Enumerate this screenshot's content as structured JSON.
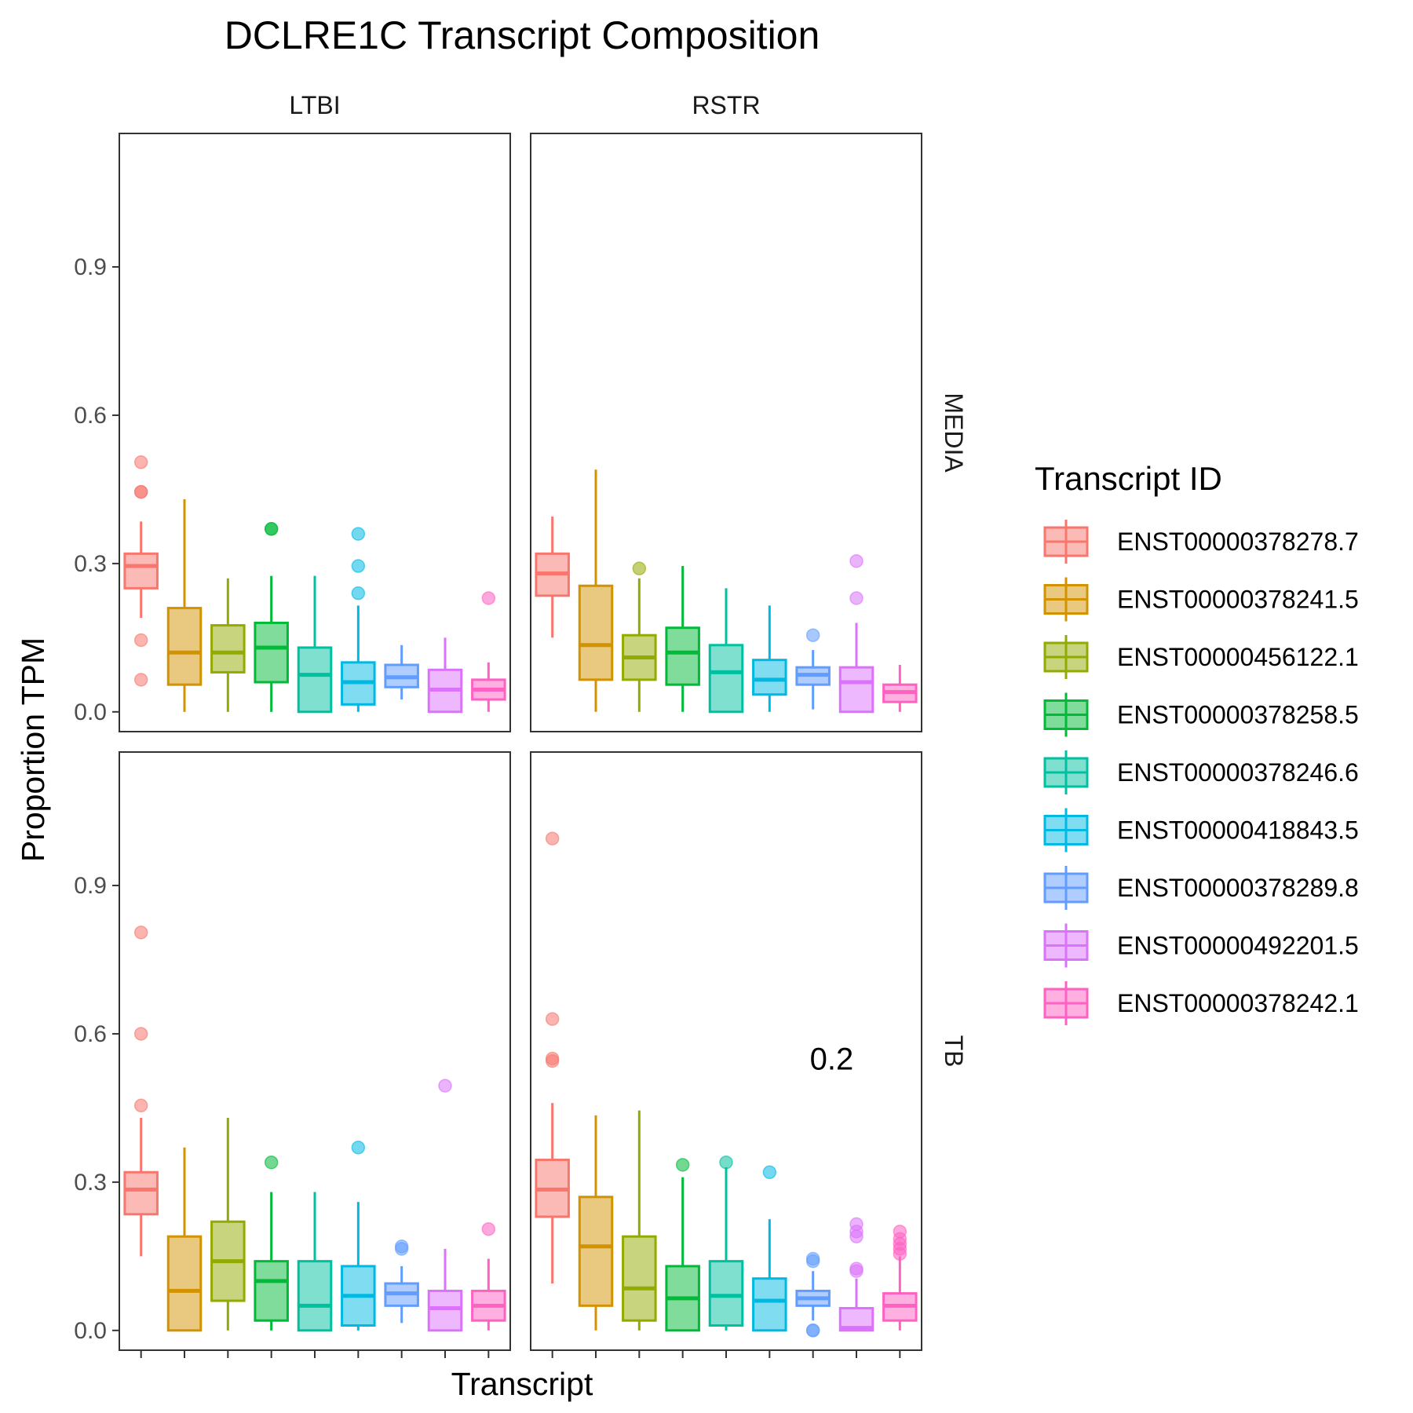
{
  "chart_data": {
    "type": "box",
    "title": "DCLRE1C Transcript Composition",
    "xlabel": "Transcript",
    "ylabel": "Proportion TPM",
    "ylim": [
      -0.04,
      1.17
    ],
    "y_ticks": [
      "0.0",
      "0.3",
      "0.6",
      "0.9"
    ],
    "y_tick_values": [
      0,
      0.3,
      0.6,
      0.9
    ],
    "column_facets": [
      "LTBI",
      "RSTR"
    ],
    "row_facets": [
      "MEDIA",
      "TB"
    ],
    "legend": {
      "title": "Transcript ID",
      "placement": "right",
      "entries": [
        {
          "label": "ENST00000378278.7",
          "color": "#F8766D"
        },
        {
          "label": "ENST00000378241.5",
          "color": "#D39200"
        },
        {
          "label": "ENST00000456122.1",
          "color": "#93AA00"
        },
        {
          "label": "ENST00000378258.5",
          "color": "#00BA38"
        },
        {
          "label": "ENST00000378246.6",
          "color": "#00C19F"
        },
        {
          "label": "ENST00000418843.5",
          "color": "#00B9E3"
        },
        {
          "label": "ENST00000378289.8",
          "color": "#619CFF"
        },
        {
          "label": "ENST00000492201.5",
          "color": "#DB72FB"
        },
        {
          "label": "ENST00000378242.1",
          "color": "#FF61C3"
        }
      ]
    },
    "panels": [
      {
        "column": "LTBI",
        "row": "MEDIA",
        "boxes": [
          {
            "q1": 0.25,
            "median": 0.295,
            "q3": 0.32,
            "lower": 0.19,
            "upper": 0.385,
            "outliers": [
              0.505,
              0.445,
              0.445,
              0.145,
              0.065
            ]
          },
          {
            "q1": 0.055,
            "median": 0.12,
            "q3": 0.21,
            "lower": 0.0,
            "upper": 0.43,
            "outliers": []
          },
          {
            "q1": 0.08,
            "median": 0.12,
            "q3": 0.175,
            "lower": 0.0,
            "upper": 0.27,
            "outliers": []
          },
          {
            "q1": 0.06,
            "median": 0.13,
            "q3": 0.18,
            "lower": 0.0,
            "upper": 0.275,
            "outliers": [
              0.37,
              0.37
            ]
          },
          {
            "q1": 0.0,
            "median": 0.075,
            "q3": 0.13,
            "lower": 0.0,
            "upper": 0.275,
            "outliers": []
          },
          {
            "q1": 0.015,
            "median": 0.06,
            "q3": 0.1,
            "lower": 0.0,
            "upper": 0.215,
            "outliers": [
              0.36,
              0.295,
              0.24
            ]
          },
          {
            "q1": 0.05,
            "median": 0.07,
            "q3": 0.095,
            "lower": 0.025,
            "upper": 0.135,
            "outliers": []
          },
          {
            "q1": 0.0,
            "median": 0.045,
            "q3": 0.085,
            "lower": 0.0,
            "upper": 0.15,
            "outliers": []
          },
          {
            "q1": 0.025,
            "median": 0.045,
            "q3": 0.065,
            "lower": 0.0,
            "upper": 0.1,
            "outliers": [
              0.23
            ]
          }
        ]
      },
      {
        "column": "RSTR",
        "row": "MEDIA",
        "boxes": [
          {
            "q1": 0.235,
            "median": 0.28,
            "q3": 0.32,
            "lower": 0.15,
            "upper": 0.395,
            "outliers": []
          },
          {
            "q1": 0.065,
            "median": 0.135,
            "q3": 0.255,
            "lower": 0.0,
            "upper": 0.49,
            "outliers": []
          },
          {
            "q1": 0.065,
            "median": 0.11,
            "q3": 0.155,
            "lower": 0.0,
            "upper": 0.27,
            "outliers": [
              0.29
            ]
          },
          {
            "q1": 0.055,
            "median": 0.12,
            "q3": 0.17,
            "lower": 0.0,
            "upper": 0.295,
            "outliers": []
          },
          {
            "q1": 0.0,
            "median": 0.08,
            "q3": 0.135,
            "lower": 0.0,
            "upper": 0.25,
            "outliers": []
          },
          {
            "q1": 0.035,
            "median": 0.065,
            "q3": 0.105,
            "lower": 0.0,
            "upper": 0.215,
            "outliers": []
          },
          {
            "q1": 0.055,
            "median": 0.075,
            "q3": 0.09,
            "lower": 0.005,
            "upper": 0.125,
            "outliers": [
              0.155
            ]
          },
          {
            "q1": 0.0,
            "median": 0.06,
            "q3": 0.09,
            "lower": 0.0,
            "upper": 0.18,
            "outliers": [
              0.305,
              0.23
            ]
          },
          {
            "q1": 0.02,
            "median": 0.04,
            "q3": 0.055,
            "lower": 0.0,
            "upper": 0.095,
            "outliers": []
          }
        ]
      },
      {
        "column": "LTBI",
        "row": "TB",
        "boxes": [
          {
            "q1": 0.235,
            "median": 0.285,
            "q3": 0.32,
            "lower": 0.15,
            "upper": 0.43,
            "outliers": [
              0.805,
              0.6,
              0.455
            ]
          },
          {
            "q1": 0.0,
            "median": 0.08,
            "q3": 0.19,
            "lower": 0.0,
            "upper": 0.37,
            "outliers": []
          },
          {
            "q1": 0.06,
            "median": 0.14,
            "q3": 0.22,
            "lower": 0.0,
            "upper": 0.43,
            "outliers": []
          },
          {
            "q1": 0.02,
            "median": 0.1,
            "q3": 0.14,
            "lower": 0.0,
            "upper": 0.28,
            "outliers": [
              0.34
            ]
          },
          {
            "q1": 0.0,
            "median": 0.05,
            "q3": 0.14,
            "lower": 0.0,
            "upper": 0.28,
            "outliers": []
          },
          {
            "q1": 0.01,
            "median": 0.07,
            "q3": 0.13,
            "lower": 0.0,
            "upper": 0.26,
            "outliers": [
              0.37
            ]
          },
          {
            "q1": 0.05,
            "median": 0.075,
            "q3": 0.095,
            "lower": 0.015,
            "upper": 0.13,
            "outliers": [
              0.17,
              0.165
            ]
          },
          {
            "q1": 0.0,
            "median": 0.045,
            "q3": 0.08,
            "lower": 0.0,
            "upper": 0.165,
            "outliers": [
              0.495
            ]
          },
          {
            "q1": 0.02,
            "median": 0.05,
            "q3": 0.08,
            "lower": 0.0,
            "upper": 0.145,
            "outliers": [
              0.205
            ]
          }
        ]
      },
      {
        "column": "RSTR",
        "row": "TB",
        "boxes": [
          {
            "q1": 0.23,
            "median": 0.285,
            "q3": 0.345,
            "lower": 0.095,
            "upper": 0.46,
            "outliers": [
              0.995,
              0.63,
              0.55,
              0.545
            ]
          },
          {
            "q1": 0.05,
            "median": 0.17,
            "q3": 0.27,
            "lower": 0.0,
            "upper": 0.435,
            "outliers": []
          },
          {
            "q1": 0.02,
            "median": 0.085,
            "q3": 0.19,
            "lower": 0.0,
            "upper": 0.445,
            "outliers": []
          },
          {
            "q1": 0.0,
            "median": 0.065,
            "q3": 0.13,
            "lower": 0.0,
            "upper": 0.31,
            "outliers": [
              0.335
            ]
          },
          {
            "q1": 0.01,
            "median": 0.07,
            "q3": 0.14,
            "lower": 0.0,
            "upper": 0.33,
            "outliers": [
              0.34
            ]
          },
          {
            "q1": 0.0,
            "median": 0.06,
            "q3": 0.105,
            "lower": 0.0,
            "upper": 0.225,
            "outliers": [
              0.32
            ]
          },
          {
            "q1": 0.05,
            "median": 0.065,
            "q3": 0.08,
            "lower": 0.02,
            "upper": 0.12,
            "outliers": [
              0.145,
              0.14,
              0.0,
              0.0
            ]
          },
          {
            "q1": 0.0,
            "median": 0.005,
            "q3": 0.045,
            "lower": 0.0,
            "upper": 0.105,
            "outliers": [
              0.215,
              0.2,
              0.19,
              0.125,
              0.12
            ]
          },
          {
            "q1": 0.02,
            "median": 0.05,
            "q3": 0.075,
            "lower": 0.0,
            "upper": 0.15,
            "outliers": [
              0.2,
              0.185,
              0.175,
              0.165,
              0.155
            ]
          }
        ]
      }
    ],
    "annotations": [
      {
        "text": "0.2",
        "column": "RSTR",
        "row": "TB",
        "y": 0.55
      }
    ]
  }
}
